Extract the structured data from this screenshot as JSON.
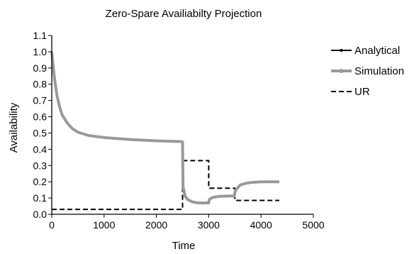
{
  "chart_data": {
    "type": "line",
    "title": "Zero-Spare Availiabilty Projection",
    "xlabel": "Time",
    "ylabel": "Availability",
    "xlim": [
      0,
      5000
    ],
    "ylim": [
      0.0,
      1.1
    ],
    "xticks": [
      "0",
      "1000",
      "2000",
      "3000",
      "4000",
      "5000"
    ],
    "yticks": [
      "0.0",
      "0.1",
      "0.2",
      "0.3",
      "0.4",
      "0.5",
      "0.6",
      "0.7",
      "0.8",
      "0.9",
      "1.0",
      "1.1"
    ],
    "grid": false,
    "legend_position": "top-right",
    "series": [
      {
        "name": "Analytical",
        "color": "#000000",
        "style": "solid",
        "x": [
          0,
          20,
          50,
          100,
          150,
          200,
          300,
          400,
          500,
          700,
          1000,
          1500,
          2000,
          2490
        ],
        "y": [
          1.0,
          0.93,
          0.84,
          0.73,
          0.66,
          0.61,
          0.56,
          0.525,
          0.505,
          0.485,
          0.472,
          0.46,
          0.452,
          0.447
        ]
      },
      {
        "name": "Simulation",
        "color": "#999999",
        "style": "solid",
        "x": [
          0,
          20,
          50,
          100,
          150,
          200,
          300,
          400,
          500,
          700,
          1000,
          1500,
          2000,
          2490,
          2500,
          2510,
          2550,
          2600,
          2700,
          2800,
          3000,
          3010,
          3050,
          3100,
          3200,
          3400,
          3490,
          3500,
          3520,
          3560,
          3600,
          3700,
          3800,
          4000,
          4200,
          4350
        ],
        "y": [
          1.0,
          0.93,
          0.84,
          0.73,
          0.66,
          0.61,
          0.56,
          0.525,
          0.505,
          0.485,
          0.472,
          0.46,
          0.452,
          0.447,
          0.445,
          0.17,
          0.11,
          0.09,
          0.075,
          0.07,
          0.07,
          0.09,
          0.1,
          0.105,
          0.11,
          0.112,
          0.112,
          0.135,
          0.15,
          0.165,
          0.18,
          0.19,
          0.195,
          0.2,
          0.2,
          0.2
        ]
      },
      {
        "name": "UR",
        "color": "#000000",
        "style": "dashed",
        "x": [
          0,
          2500,
          2500,
          3000,
          3000,
          3500,
          3500,
          4350
        ],
        "y": [
          0.03,
          0.03,
          0.33,
          0.33,
          0.16,
          0.16,
          0.085,
          0.085
        ]
      }
    ]
  }
}
